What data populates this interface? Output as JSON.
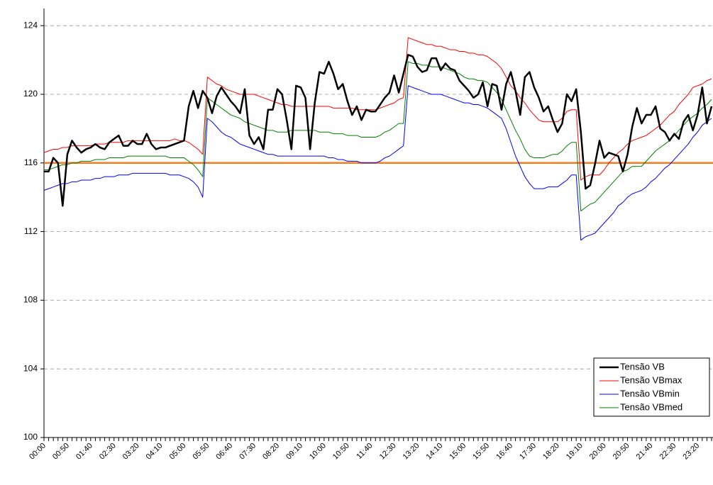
{
  "chart_data": {
    "type": "line",
    "categories": [
      "00:00",
      null,
      null,
      null,
      null,
      "00:50",
      null,
      null,
      null,
      null,
      "01:40",
      null,
      null,
      null,
      null,
      "02:30",
      null,
      null,
      null,
      null,
      "03:20",
      null,
      null,
      null,
      null,
      "04:10",
      null,
      null,
      null,
      null,
      "05:00",
      null,
      null,
      null,
      null,
      "05:50",
      null,
      null,
      null,
      null,
      "06:40",
      null,
      null,
      null,
      null,
      "07:30",
      null,
      null,
      null,
      null,
      "08:20",
      null,
      null,
      null,
      null,
      "09:10",
      null,
      null,
      null,
      null,
      "10:00",
      null,
      null,
      null,
      null,
      "10:50",
      null,
      null,
      null,
      null,
      "11:40",
      null,
      null,
      null,
      null,
      "12:30",
      null,
      null,
      null,
      null,
      "13:20",
      null,
      null,
      null,
      null,
      "14:10",
      null,
      null,
      null,
      null,
      "15:00",
      null,
      null,
      null,
      null,
      "15:50",
      null,
      null,
      null,
      null,
      "16:40",
      null,
      null,
      null,
      null,
      "17:30",
      null,
      null,
      null,
      null,
      "18:20",
      null,
      null,
      null,
      null,
      "19:10",
      null,
      null,
      null,
      null,
      "20:00",
      null,
      null,
      null,
      null,
      "20:50",
      null,
      null,
      null,
      null,
      "21:40",
      null,
      null,
      null,
      null,
      "22:30",
      null,
      null,
      null,
      null,
      "23:20",
      null,
      null,
      null
    ],
    "series": [
      {
        "name": "Tensão VB",
        "color": "#000000",
        "values": [
          115.5,
          115.5,
          116.3,
          116.0,
          113.5,
          116.5,
          117.3,
          116.9,
          116.6,
          116.8,
          116.9,
          117.1,
          116.9,
          116.8,
          117.2,
          117.4,
          117.6,
          117.0,
          117.0,
          117.3,
          117.1,
          117.1,
          117.7,
          117.1,
          116.8,
          116.9,
          116.9,
          117.0,
          117.1,
          117.2,
          117.3,
          119.3,
          120.2,
          119.2,
          120.2,
          119.8,
          118.9,
          119.9,
          120.4,
          120.0,
          119.6,
          119.3,
          118.9,
          120.3,
          117.6,
          117.1,
          117.5,
          116.8,
          119.1,
          119.1,
          120.3,
          120.0,
          118.5,
          116.8,
          120.5,
          120.4,
          119.8,
          116.8,
          119.5,
          121.3,
          121.2,
          121.9,
          121.2,
          120.3,
          120.6,
          119.6,
          118.8,
          119.3,
          118.5,
          119.1,
          119.0,
          119.0,
          119.4,
          119.8,
          120.1,
          121.1,
          120.1,
          121.2,
          122.3,
          122.2,
          121.6,
          121.3,
          121.4,
          122.1,
          122.1,
          121.4,
          121.8,
          121.5,
          121.4,
          120.8,
          120.5,
          120.2,
          119.8,
          120.0,
          120.7,
          119.3,
          120.6,
          120.5,
          119.1,
          120.6,
          121.3,
          120.2,
          118.8,
          121.0,
          121.3,
          120.4,
          119.8,
          119.0,
          119.3,
          118.5,
          117.8,
          118.3,
          120.0,
          119.6,
          120.3,
          117.8,
          114.5,
          114.7,
          115.9,
          117.3,
          116.3,
          116.6,
          116.5,
          116.4,
          115.5,
          116.5,
          118.1,
          119.2,
          118.3,
          118.8,
          118.8,
          119.3,
          118.0,
          117.8,
          117.3,
          117.7,
          117.4,
          118.4,
          118.8,
          117.9,
          118.8,
          120.4,
          118.3,
          119.3
        ]
      },
      {
        "name": "Tensão VBmax",
        "color": "#ff0000",
        "values": [
          116.6,
          116.7,
          116.8,
          116.8,
          116.9,
          116.9,
          117.0,
          117.0,
          117.0,
          117.0,
          117.0,
          117.1,
          117.1,
          117.1,
          117.2,
          117.2,
          117.2,
          117.2,
          117.3,
          117.3,
          117.3,
          117.3,
          117.3,
          117.3,
          117.3,
          117.3,
          117.3,
          117.3,
          117.4,
          117.3,
          117.3,
          117.2,
          117.0,
          116.8,
          116.5,
          121.0,
          120.8,
          120.6,
          120.5,
          120.3,
          120.2,
          120.1,
          120.0,
          120.0,
          120.0,
          120.0,
          119.9,
          119.8,
          119.7,
          119.6,
          119.5,
          119.4,
          119.4,
          119.3,
          119.3,
          119.3,
          119.3,
          119.3,
          119.3,
          119.3,
          119.3,
          119.3,
          119.2,
          119.2,
          119.2,
          119.2,
          119.2,
          119.1,
          119.1,
          119.1,
          119.1,
          119.1,
          119.2,
          119.3,
          119.4,
          119.5,
          119.7,
          119.8,
          123.3,
          123.2,
          123.1,
          123.0,
          122.9,
          122.9,
          122.8,
          122.8,
          122.7,
          122.6,
          122.6,
          122.5,
          122.5,
          122.4,
          122.4,
          122.3,
          122.3,
          122.2,
          122.0,
          121.8,
          121.5,
          121.0,
          120.5,
          120.2,
          119.8,
          119.5,
          119.1,
          118.8,
          118.5,
          118.4,
          118.4,
          118.4,
          118.4,
          118.6,
          119.0,
          119.1,
          119.1,
          115.0,
          115.2,
          115.3,
          115.3,
          115.3,
          115.6,
          116.0,
          116.3,
          116.6,
          116.8,
          117.1,
          117.3,
          117.4,
          117.5,
          117.6,
          117.8,
          118.0,
          118.2,
          118.5,
          118.8,
          119.0,
          119.4,
          119.7,
          120.0,
          120.4,
          120.5,
          120.6,
          120.8,
          120.9
        ]
      },
      {
        "name": "Tensão VBmin",
        "color": "#0000ff",
        "values": [
          114.4,
          114.5,
          114.6,
          114.7,
          114.8,
          114.8,
          114.9,
          114.9,
          115.0,
          115.0,
          115.0,
          115.1,
          115.1,
          115.2,
          115.2,
          115.2,
          115.3,
          115.3,
          115.3,
          115.4,
          115.4,
          115.4,
          115.4,
          115.4,
          115.4,
          115.4,
          115.4,
          115.3,
          115.3,
          115.3,
          115.2,
          115.1,
          114.9,
          114.6,
          114.0,
          118.6,
          118.4,
          118.1,
          117.8,
          117.6,
          117.5,
          117.3,
          117.1,
          117.0,
          116.9,
          116.8,
          116.7,
          116.6,
          116.5,
          116.5,
          116.4,
          116.4,
          116.4,
          116.4,
          116.4,
          116.4,
          116.4,
          116.4,
          116.4,
          116.4,
          116.4,
          116.3,
          116.3,
          116.2,
          116.2,
          116.1,
          116.1,
          116.1,
          116.0,
          116.0,
          116.0,
          116.0,
          116.1,
          116.3,
          116.4,
          116.6,
          116.8,
          117.0,
          120.5,
          120.4,
          120.3,
          120.2,
          120.1,
          120.0,
          120.0,
          120.0,
          119.9,
          119.8,
          119.7,
          119.6,
          119.5,
          119.5,
          119.4,
          119.4,
          119.3,
          119.2,
          119.0,
          118.8,
          118.6,
          118.0,
          117.2,
          116.4,
          115.8,
          115.2,
          114.8,
          114.5,
          114.5,
          114.5,
          114.6,
          114.6,
          114.6,
          114.8,
          115.0,
          115.3,
          115.3,
          111.5,
          111.7,
          111.8,
          111.9,
          112.2,
          112.5,
          112.8,
          113.1,
          113.5,
          113.7,
          114.0,
          114.2,
          114.3,
          114.4,
          114.6,
          114.9,
          115.1,
          115.4,
          115.7,
          115.9,
          116.2,
          116.5,
          116.8,
          117.1,
          117.5,
          117.8,
          118.2,
          118.4,
          118.6
        ]
      },
      {
        "name": "Tensão VBmed",
        "color": "#008000",
        "values": [
          115.6,
          115.6,
          115.7,
          115.8,
          115.9,
          115.9,
          116.0,
          116.0,
          116.1,
          116.1,
          116.1,
          116.2,
          116.2,
          116.2,
          116.3,
          116.3,
          116.3,
          116.3,
          116.4,
          116.4,
          116.4,
          116.4,
          116.4,
          116.4,
          116.4,
          116.4,
          116.4,
          116.3,
          116.3,
          116.3,
          116.3,
          116.1,
          115.9,
          115.6,
          115.2,
          119.8,
          119.6,
          119.4,
          119.2,
          119.0,
          118.8,
          118.7,
          118.6,
          118.4,
          118.3,
          118.2,
          118.1,
          118.0,
          117.9,
          117.9,
          117.8,
          117.8,
          117.8,
          117.9,
          117.9,
          117.9,
          117.9,
          117.9,
          117.9,
          117.8,
          117.8,
          117.8,
          117.7,
          117.7,
          117.7,
          117.6,
          117.6,
          117.6,
          117.5,
          117.5,
          117.5,
          117.5,
          117.6,
          117.8,
          117.9,
          118.1,
          118.3,
          118.3,
          121.9,
          121.8,
          121.8,
          121.7,
          121.7,
          121.6,
          121.6,
          121.6,
          121.5,
          121.4,
          121.3,
          121.2,
          121.0,
          120.9,
          120.9,
          120.8,
          120.8,
          120.7,
          120.4,
          120.1,
          119.7,
          119.1,
          118.5,
          117.9,
          117.4,
          116.8,
          116.4,
          116.3,
          116.3,
          116.3,
          116.4,
          116.5,
          116.5,
          116.7,
          117.0,
          117.2,
          117.2,
          113.2,
          113.4,
          113.6,
          113.7,
          114.0,
          114.3,
          114.6,
          114.9,
          115.2,
          115.5,
          115.6,
          115.8,
          115.8,
          115.8,
          116.1,
          116.4,
          116.7,
          116.9,
          117.1,
          117.3,
          117.6,
          117.9,
          118.2,
          118.5,
          118.7,
          118.9,
          119.2,
          119.4,
          119.7
        ]
      }
    ],
    "reference_line": {
      "value": 116,
      "color": "#f57c20"
    },
    "ylim": [
      100,
      125
    ],
    "yticks": [
      100,
      104,
      108,
      112,
      116,
      120,
      124
    ],
    "grid": true,
    "legend": "lower right"
  }
}
